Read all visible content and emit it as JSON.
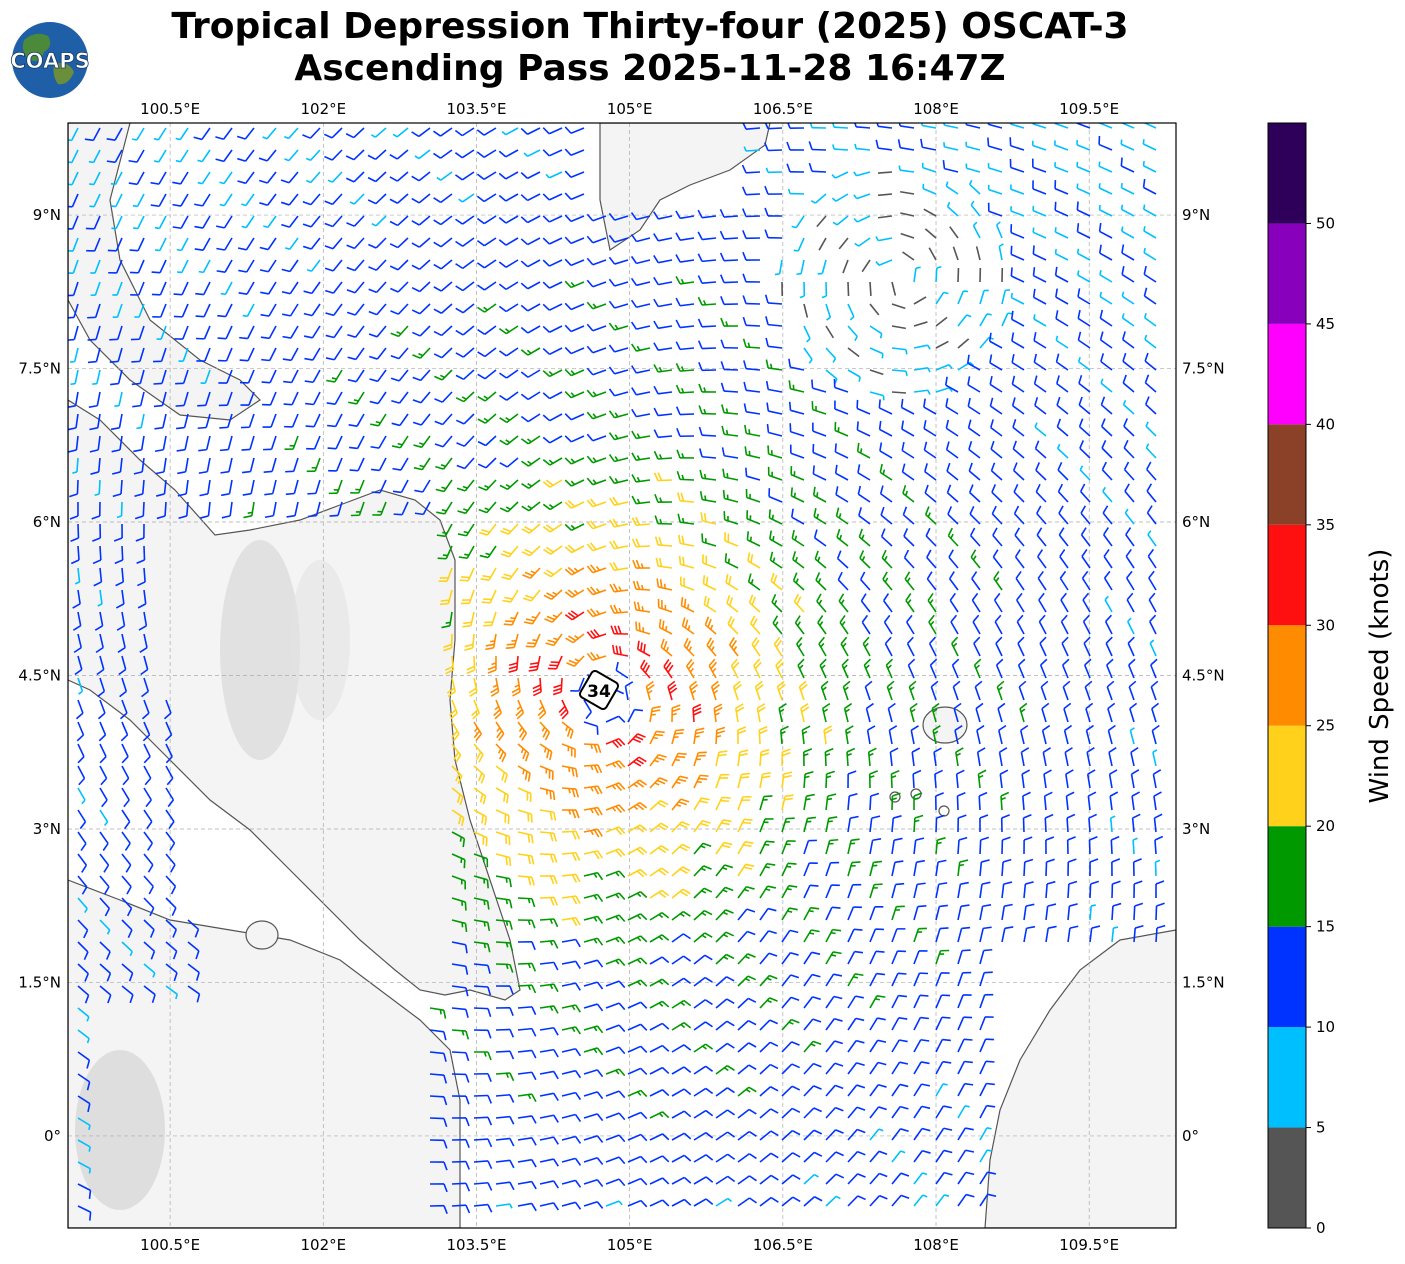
{
  "title": {
    "line1": "Tropical Depression Thirty-four (2025) OSCAT-3",
    "line2": "Ascending Pass 2025-11-28 16:47Z"
  },
  "logo": {
    "text": "COAPS"
  },
  "map": {
    "lon_range": [
      99.5,
      110.35
    ],
    "lat_range": [
      -0.9,
      9.9
    ],
    "lon_ticks": [
      {
        "value": 100.5,
        "label": "100.5°E"
      },
      {
        "value": 102.0,
        "label": "102°E"
      },
      {
        "value": 103.5,
        "label": "103.5°E"
      },
      {
        "value": 105.0,
        "label": "105°E"
      },
      {
        "value": 106.5,
        "label": "106.5°E"
      },
      {
        "value": 108.0,
        "label": "108°E"
      },
      {
        "value": 109.5,
        "label": "109.5°E"
      }
    ],
    "lat_ticks": [
      {
        "value": 9.0,
        "label": "9°N"
      },
      {
        "value": 7.5,
        "label": "7.5°N"
      },
      {
        "value": 6.0,
        "label": "6°N"
      },
      {
        "value": 4.5,
        "label": "4.5°N"
      },
      {
        "value": 3.0,
        "label": "3°N"
      },
      {
        "value": 1.5,
        "label": "1.5°N"
      },
      {
        "value": 0.0,
        "label": "0°"
      }
    ],
    "grid": true,
    "storm": {
      "lon": 104.75,
      "lat": 4.3,
      "label": "34"
    }
  },
  "colorbar": {
    "label": "Wind Speed (knots)",
    "ticks": [
      "0",
      "5",
      "10",
      "15",
      "20",
      "25",
      "30",
      "35",
      "40",
      "45",
      "50"
    ],
    "bins": [
      {
        "from": 0,
        "to": 5,
        "color": "#555555"
      },
      {
        "from": 5,
        "to": 10,
        "color": "#00bfff"
      },
      {
        "from": 10,
        "to": 15,
        "color": "#0033ff"
      },
      {
        "from": 15,
        "to": 20,
        "color": "#009900"
      },
      {
        "from": 20,
        "to": 25,
        "color": "#ffd11a"
      },
      {
        "from": 25,
        "to": 30,
        "color": "#ff8c00"
      },
      {
        "from": 30,
        "to": 35,
        "color": "#ff1010"
      },
      {
        "from": 35,
        "to": 40,
        "color": "#8b4028"
      },
      {
        "from": 40,
        "to": 45,
        "color": "#ff00ff"
      },
      {
        "from": 45,
        "to": 50,
        "color": "#8800bb"
      },
      {
        "from": 50,
        "to": 55,
        "color": "#2e0059"
      }
    ]
  }
}
